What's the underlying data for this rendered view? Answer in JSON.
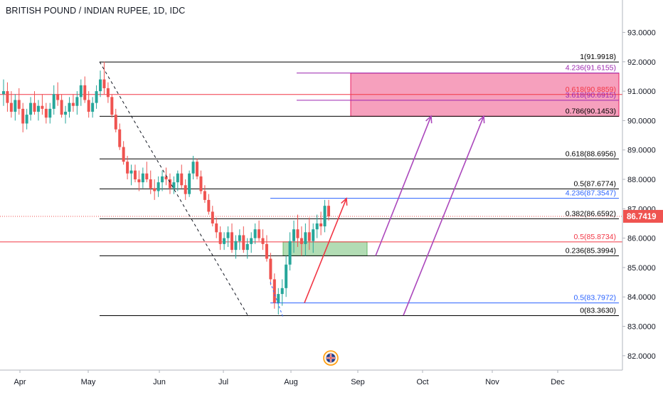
{
  "header": {
    "title": "BRITISH POUND / INDIAN RUPEE, 1D, IDC"
  },
  "chart_data": {
    "type": "candlestick",
    "title": "BRITISH POUND / INDIAN RUPEE, 1D, IDC",
    "y_axis": {
      "range": [
        81.55,
        93.85
      ],
      "ticks": [
        "82.0000",
        "83.0000",
        "84.0000",
        "85.0000",
        "86.0000",
        "87.0000",
        "88.0000",
        "89.0000",
        "90.0000",
        "91.0000",
        "92.0000",
        "93.0000"
      ]
    },
    "x_axis": {
      "ticks": [
        "Apr",
        "May",
        "Jun",
        "Jul",
        "Aug",
        "Sep",
        "Oct",
        "Nov",
        "Dec"
      ]
    },
    "last_price": {
      "value": 86.7419,
      "label": "86.7419",
      "color": "#ef5350"
    },
    "ohlc": [
      [
        90.9,
        91.4,
        90.5,
        91.0
      ],
      [
        91.0,
        91.3,
        90.3,
        90.6
      ],
      [
        90.6,
        91.0,
        90.1,
        90.3
      ],
      [
        90.3,
        90.9,
        90.0,
        90.7
      ],
      [
        90.7,
        91.1,
        90.2,
        90.4
      ],
      [
        90.4,
        90.6,
        89.6,
        89.9
      ],
      [
        89.9,
        90.4,
        89.7,
        90.2
      ],
      [
        90.2,
        90.8,
        90.0,
        90.6
      ],
      [
        90.6,
        91.0,
        90.2,
        90.3
      ],
      [
        90.3,
        90.7,
        90.0,
        90.5
      ],
      [
        90.5,
        90.9,
        90.2,
        90.4
      ],
      [
        90.4,
        90.6,
        89.9,
        90.1
      ],
      [
        90.1,
        90.6,
        89.9,
        90.4
      ],
      [
        90.4,
        91.2,
        90.2,
        90.9
      ],
      [
        90.9,
        91.3,
        90.5,
        90.7
      ],
      [
        90.7,
        90.9,
        90.1,
        90.2
      ],
      [
        90.2,
        90.5,
        89.9,
        90.3
      ],
      [
        90.3,
        90.8,
        90.1,
        90.6
      ],
      [
        90.6,
        90.9,
        90.3,
        90.5
      ],
      [
        90.5,
        91.0,
        90.2,
        90.8
      ],
      [
        90.8,
        91.4,
        90.5,
        91.2
      ],
      [
        91.2,
        91.5,
        90.6,
        90.7
      ],
      [
        90.7,
        91.0,
        90.1,
        90.3
      ],
      [
        90.3,
        90.8,
        90.1,
        90.6
      ],
      [
        90.6,
        91.2,
        90.4,
        91.0
      ],
      [
        91.0,
        91.7,
        90.8,
        91.4
      ],
      [
        91.4,
        92.0,
        90.9,
        91.1
      ],
      [
        91.1,
        91.3,
        90.6,
        90.8
      ],
      [
        90.8,
        90.9,
        90.1,
        90.2
      ],
      [
        90.2,
        90.4,
        89.6,
        89.7
      ],
      [
        89.7,
        89.9,
        89.0,
        89.1
      ],
      [
        89.1,
        89.3,
        88.5,
        88.6
      ],
      [
        88.6,
        88.8,
        88.0,
        88.2
      ],
      [
        88.2,
        88.5,
        87.8,
        88.3
      ],
      [
        88.3,
        88.5,
        87.9,
        88.0
      ],
      [
        88.0,
        88.3,
        87.6,
        87.9
      ],
      [
        87.9,
        88.4,
        87.7,
        88.2
      ],
      [
        88.2,
        88.6,
        87.9,
        88.0
      ],
      [
        88.0,
        88.3,
        87.5,
        87.7
      ],
      [
        87.7,
        88.0,
        87.3,
        87.6
      ],
      [
        87.6,
        88.1,
        87.4,
        87.9
      ],
      [
        87.9,
        88.3,
        87.6,
        88.1
      ],
      [
        88.1,
        88.4,
        87.8,
        88.0
      ],
      [
        88.0,
        88.2,
        87.5,
        87.7
      ],
      [
        87.7,
        88.1,
        87.5,
        87.9
      ],
      [
        87.9,
        88.3,
        87.6,
        88.2
      ],
      [
        88.2,
        88.5,
        87.7,
        87.8
      ],
      [
        87.8,
        88.0,
        87.3,
        87.5
      ],
      [
        87.5,
        88.3,
        87.4,
        88.2
      ],
      [
        88.2,
        88.8,
        88.0,
        88.6
      ],
      [
        88.6,
        88.7,
        88.0,
        88.1
      ],
      [
        88.1,
        88.3,
        87.5,
        87.6
      ],
      [
        87.6,
        87.8,
        87.2,
        87.3
      ],
      [
        87.3,
        87.5,
        86.8,
        86.9
      ],
      [
        86.9,
        87.1,
        86.4,
        86.5
      ],
      [
        86.5,
        86.7,
        86.0,
        86.2
      ],
      [
        86.2,
        86.4,
        85.6,
        85.8
      ],
      [
        85.8,
        86.2,
        85.6,
        86.0
      ],
      [
        86.0,
        86.4,
        85.7,
        86.2
      ],
      [
        86.2,
        86.5,
        85.5,
        85.6
      ],
      [
        85.6,
        86.1,
        85.3,
        85.9
      ],
      [
        85.9,
        86.3,
        85.6,
        86.1
      ],
      [
        86.1,
        86.4,
        85.5,
        85.6
      ],
      [
        85.6,
        86.0,
        85.3,
        85.8
      ],
      [
        85.8,
        86.2,
        85.5,
        86.0
      ],
      [
        86.0,
        86.5,
        85.8,
        86.3
      ],
      [
        86.3,
        86.6,
        85.9,
        86.0
      ],
      [
        86.0,
        86.3,
        85.6,
        85.8
      ],
      [
        85.8,
        86.1,
        85.2,
        85.3
      ],
      [
        85.3,
        85.5,
        84.4,
        84.6
      ],
      [
        84.6,
        84.8,
        83.6,
        83.8
      ],
      [
        83.8,
        84.3,
        83.4,
        84.1
      ],
      [
        84.1,
        84.6,
        83.7,
        84.3
      ],
      [
        84.3,
        85.4,
        84.0,
        85.1
      ],
      [
        85.1,
        86.2,
        84.9,
        85.9
      ],
      [
        85.9,
        86.6,
        85.5,
        86.3
      ],
      [
        86.3,
        86.8,
        85.7,
        86.0
      ],
      [
        86.0,
        86.4,
        85.4,
        85.8
      ],
      [
        85.8,
        86.5,
        85.4,
        86.2
      ],
      [
        86.2,
        86.7,
        85.6,
        85.9
      ],
      [
        85.9,
        86.5,
        85.5,
        86.3
      ],
      [
        86.3,
        86.8,
        86.0,
        86.5
      ],
      [
        86.5,
        86.9,
        86.1,
        86.4
      ],
      [
        86.4,
        87.3,
        86.2,
        87.1
      ],
      [
        87.1,
        87.3,
        86.6,
        86.74
      ]
    ],
    "levels": [
      {
        "value": 91.9918,
        "label": "1(91.9918)",
        "color": "#000000",
        "from": "May"
      },
      {
        "value": 90.1453,
        "label": "0.786(90.1453)",
        "color": "#000000",
        "from": "May"
      },
      {
        "value": 88.6956,
        "label": "0.618(88.6956)",
        "color": "#000000",
        "from": "May"
      },
      {
        "value": 87.6774,
        "label": "0.5(87.6774)",
        "color": "#000000",
        "from": "May"
      },
      {
        "value": 86.6592,
        "label": "0.382(86.6592)",
        "color": "#000000",
        "from": "May"
      },
      {
        "value": 85.3994,
        "label": "0.236(85.3994)",
        "color": "#000000",
        "from": "May"
      },
      {
        "value": 83.363,
        "label": "0(83.3630)",
        "color": "#000000",
        "from": "May"
      },
      {
        "value": 90.8859,
        "label": "0.618(90.8859)",
        "color": "#f23645",
        "from": "start"
      },
      {
        "value": 85.8734,
        "label": "0.5(85.8734)",
        "color": "#f23645",
        "from": "start"
      },
      {
        "value": 91.6155,
        "label": "4.236(91.6155)",
        "color": "#9c27b0",
        "from": "ext"
      },
      {
        "value": 90.6915,
        "label": "3.618(90.6915)",
        "color": "#9c27b0",
        "from": "ext"
      },
      {
        "value": 87.3547,
        "label": "4.236(87.3547)",
        "color": "#2962ff",
        "from": "Aug-ext"
      },
      {
        "value": 83.7972,
        "label": "0.5(83.7972)",
        "color": "#2962ff",
        "from": "Aug-ext"
      }
    ],
    "zones": [
      {
        "name": "target-zone",
        "y": [
          90.1453,
          91.6155
        ],
        "color": "#f48fb1"
      },
      {
        "name": "support-zone",
        "y": [
          85.3994,
          85.8734
        ],
        "color": "#a5d6a7"
      }
    ]
  }
}
